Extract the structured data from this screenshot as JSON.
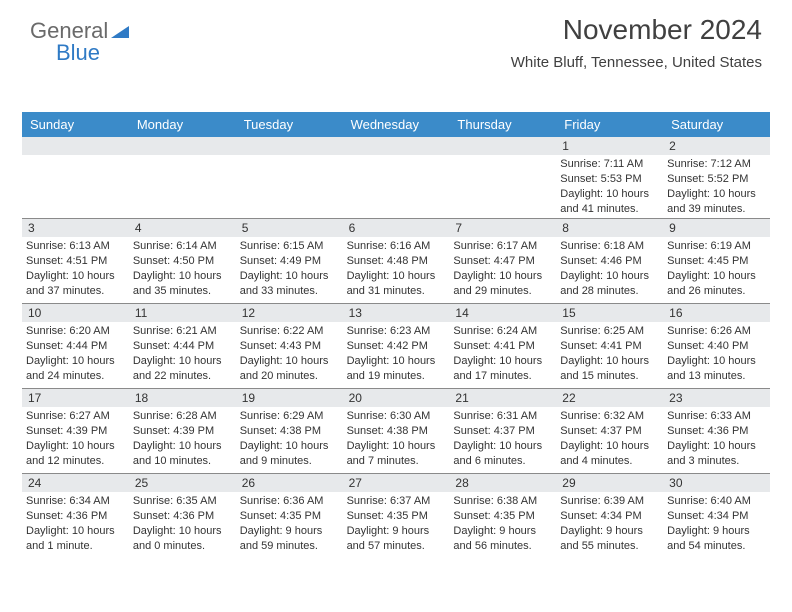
{
  "brand": {
    "text_a": "General",
    "text_b": "Blue"
  },
  "title": "November 2024",
  "location": "White Bluff, Tennessee, United States",
  "colors": {
    "header_bg": "#3b8bc9",
    "header_text": "#ffffff",
    "daynum_bg": "#e7e9eb",
    "text": "#333333",
    "rule": "#8a8a8a",
    "logo_blue": "#2f7ac5",
    "logo_gray": "#6a6a6a",
    "background": "#ffffff"
  },
  "typography": {
    "title_fontsize": 28,
    "location_fontsize": 15,
    "dow_fontsize": 13,
    "daynum_fontsize": 12,
    "body_fontsize": 11
  },
  "dow": [
    "Sunday",
    "Monday",
    "Tuesday",
    "Wednesday",
    "Thursday",
    "Friday",
    "Saturday"
  ],
  "weeks": [
    [
      null,
      null,
      null,
      null,
      null,
      {
        "n": "1",
        "sunrise": "7:11 AM",
        "sunset": "5:53 PM",
        "day_h": "10",
        "day_m": "41 minutes"
      },
      {
        "n": "2",
        "sunrise": "7:12 AM",
        "sunset": "5:52 PM",
        "day_h": "10",
        "day_m": "39 minutes"
      }
    ],
    [
      {
        "n": "3",
        "sunrise": "6:13 AM",
        "sunset": "4:51 PM",
        "day_h": "10",
        "day_m": "37 minutes"
      },
      {
        "n": "4",
        "sunrise": "6:14 AM",
        "sunset": "4:50 PM",
        "day_h": "10",
        "day_m": "35 minutes"
      },
      {
        "n": "5",
        "sunrise": "6:15 AM",
        "sunset": "4:49 PM",
        "day_h": "10",
        "day_m": "33 minutes"
      },
      {
        "n": "6",
        "sunrise": "6:16 AM",
        "sunset": "4:48 PM",
        "day_h": "10",
        "day_m": "31 minutes"
      },
      {
        "n": "7",
        "sunrise": "6:17 AM",
        "sunset": "4:47 PM",
        "day_h": "10",
        "day_m": "29 minutes"
      },
      {
        "n": "8",
        "sunrise": "6:18 AM",
        "sunset": "4:46 PM",
        "day_h": "10",
        "day_m": "28 minutes"
      },
      {
        "n": "9",
        "sunrise": "6:19 AM",
        "sunset": "4:45 PM",
        "day_h": "10",
        "day_m": "26 minutes"
      }
    ],
    [
      {
        "n": "10",
        "sunrise": "6:20 AM",
        "sunset": "4:44 PM",
        "day_h": "10",
        "day_m": "24 minutes"
      },
      {
        "n": "11",
        "sunrise": "6:21 AM",
        "sunset": "4:44 PM",
        "day_h": "10",
        "day_m": "22 minutes"
      },
      {
        "n": "12",
        "sunrise": "6:22 AM",
        "sunset": "4:43 PM",
        "day_h": "10",
        "day_m": "20 minutes"
      },
      {
        "n": "13",
        "sunrise": "6:23 AM",
        "sunset": "4:42 PM",
        "day_h": "10",
        "day_m": "19 minutes"
      },
      {
        "n": "14",
        "sunrise": "6:24 AM",
        "sunset": "4:41 PM",
        "day_h": "10",
        "day_m": "17 minutes"
      },
      {
        "n": "15",
        "sunrise": "6:25 AM",
        "sunset": "4:41 PM",
        "day_h": "10",
        "day_m": "15 minutes"
      },
      {
        "n": "16",
        "sunrise": "6:26 AM",
        "sunset": "4:40 PM",
        "day_h": "10",
        "day_m": "13 minutes"
      }
    ],
    [
      {
        "n": "17",
        "sunrise": "6:27 AM",
        "sunset": "4:39 PM",
        "day_h": "10",
        "day_m": "12 minutes"
      },
      {
        "n": "18",
        "sunrise": "6:28 AM",
        "sunset": "4:39 PM",
        "day_h": "10",
        "day_m": "10 minutes"
      },
      {
        "n": "19",
        "sunrise": "6:29 AM",
        "sunset": "4:38 PM",
        "day_h": "10",
        "day_m": "9 minutes"
      },
      {
        "n": "20",
        "sunrise": "6:30 AM",
        "sunset": "4:38 PM",
        "day_h": "10",
        "day_m": "7 minutes"
      },
      {
        "n": "21",
        "sunrise": "6:31 AM",
        "sunset": "4:37 PM",
        "day_h": "10",
        "day_m": "6 minutes"
      },
      {
        "n": "22",
        "sunrise": "6:32 AM",
        "sunset": "4:37 PM",
        "day_h": "10",
        "day_m": "4 minutes"
      },
      {
        "n": "23",
        "sunrise": "6:33 AM",
        "sunset": "4:36 PM",
        "day_h": "10",
        "day_m": "3 minutes"
      }
    ],
    [
      {
        "n": "24",
        "sunrise": "6:34 AM",
        "sunset": "4:36 PM",
        "day_h": "10",
        "day_m": "1 minute"
      },
      {
        "n": "25",
        "sunrise": "6:35 AM",
        "sunset": "4:36 PM",
        "day_h": "10",
        "day_m": "0 minutes"
      },
      {
        "n": "26",
        "sunrise": "6:36 AM",
        "sunset": "4:35 PM",
        "day_h": "9",
        "day_m": "59 minutes"
      },
      {
        "n": "27",
        "sunrise": "6:37 AM",
        "sunset": "4:35 PM",
        "day_h": "9",
        "day_m": "57 minutes"
      },
      {
        "n": "28",
        "sunrise": "6:38 AM",
        "sunset": "4:35 PM",
        "day_h": "9",
        "day_m": "56 minutes"
      },
      {
        "n": "29",
        "sunrise": "6:39 AM",
        "sunset": "4:34 PM",
        "day_h": "9",
        "day_m": "55 minutes"
      },
      {
        "n": "30",
        "sunrise": "6:40 AM",
        "sunset": "4:34 PM",
        "day_h": "9",
        "day_m": "54 minutes"
      }
    ]
  ],
  "labels": {
    "sunrise": "Sunrise:",
    "sunset": "Sunset:",
    "daylight": "Daylight:",
    "hours": "hours",
    "and": "and"
  }
}
